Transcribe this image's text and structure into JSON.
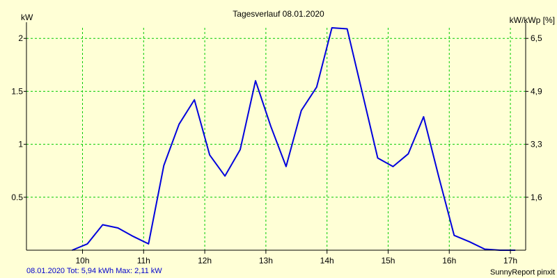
{
  "chart_data": {
    "type": "line",
    "title": "Tagesverlauf 08.01.2020",
    "ylabel_left": "kW",
    "ylabel_right": "kW/kWp [%]",
    "x_ticks": [
      "10h",
      "11h",
      "12h",
      "13h",
      "14h",
      "15h",
      "16h",
      "17h"
    ],
    "x_tick_values": [
      10,
      11,
      12,
      13,
      14,
      15,
      16,
      17
    ],
    "xlim": [
      9.083,
      17.25
    ],
    "y_ticks_left": [
      "0.5",
      "1",
      "1.5",
      "2"
    ],
    "y_tick_values_left": [
      0.5,
      1,
      1.5,
      2
    ],
    "y_ticks_right": [
      "1,6",
      "3,3",
      "4,9",
      "6,5"
    ],
    "ylim": [
      0,
      2.1
    ],
    "grid": true,
    "colors": {
      "background": "#ffffd6",
      "line": "#0000dd",
      "grid": "#00cc00",
      "axes": "#000000"
    },
    "series": [
      {
        "x": [
          9.83,
          10.08,
          10.33,
          10.58,
          10.83,
          11.08,
          11.33,
          11.58,
          11.83,
          12.08,
          12.33,
          12.58,
          12.83,
          13.08,
          13.33,
          13.58,
          13.83,
          14.08,
          14.33,
          14.58,
          14.83,
          15.08,
          15.33,
          15.58,
          15.83,
          16.08,
          16.33,
          16.58,
          16.83,
          17.08
        ],
        "values": [
          0.0,
          0.06,
          0.24,
          0.21,
          0.13,
          0.06,
          0.8,
          1.19,
          1.42,
          0.9,
          0.7,
          0.95,
          1.6,
          1.17,
          0.79,
          1.32,
          1.54,
          2.1,
          2.09,
          1.48,
          0.87,
          0.79,
          0.91,
          1.26,
          0.69,
          0.14,
          0.08,
          0.01,
          0.0,
          0.0
        ]
      }
    ]
  },
  "footer": {
    "left": "08.01.2020 Tot: 5,94 kWh Max: 2,11 kW",
    "right": "SunnyReport pinxit"
  }
}
